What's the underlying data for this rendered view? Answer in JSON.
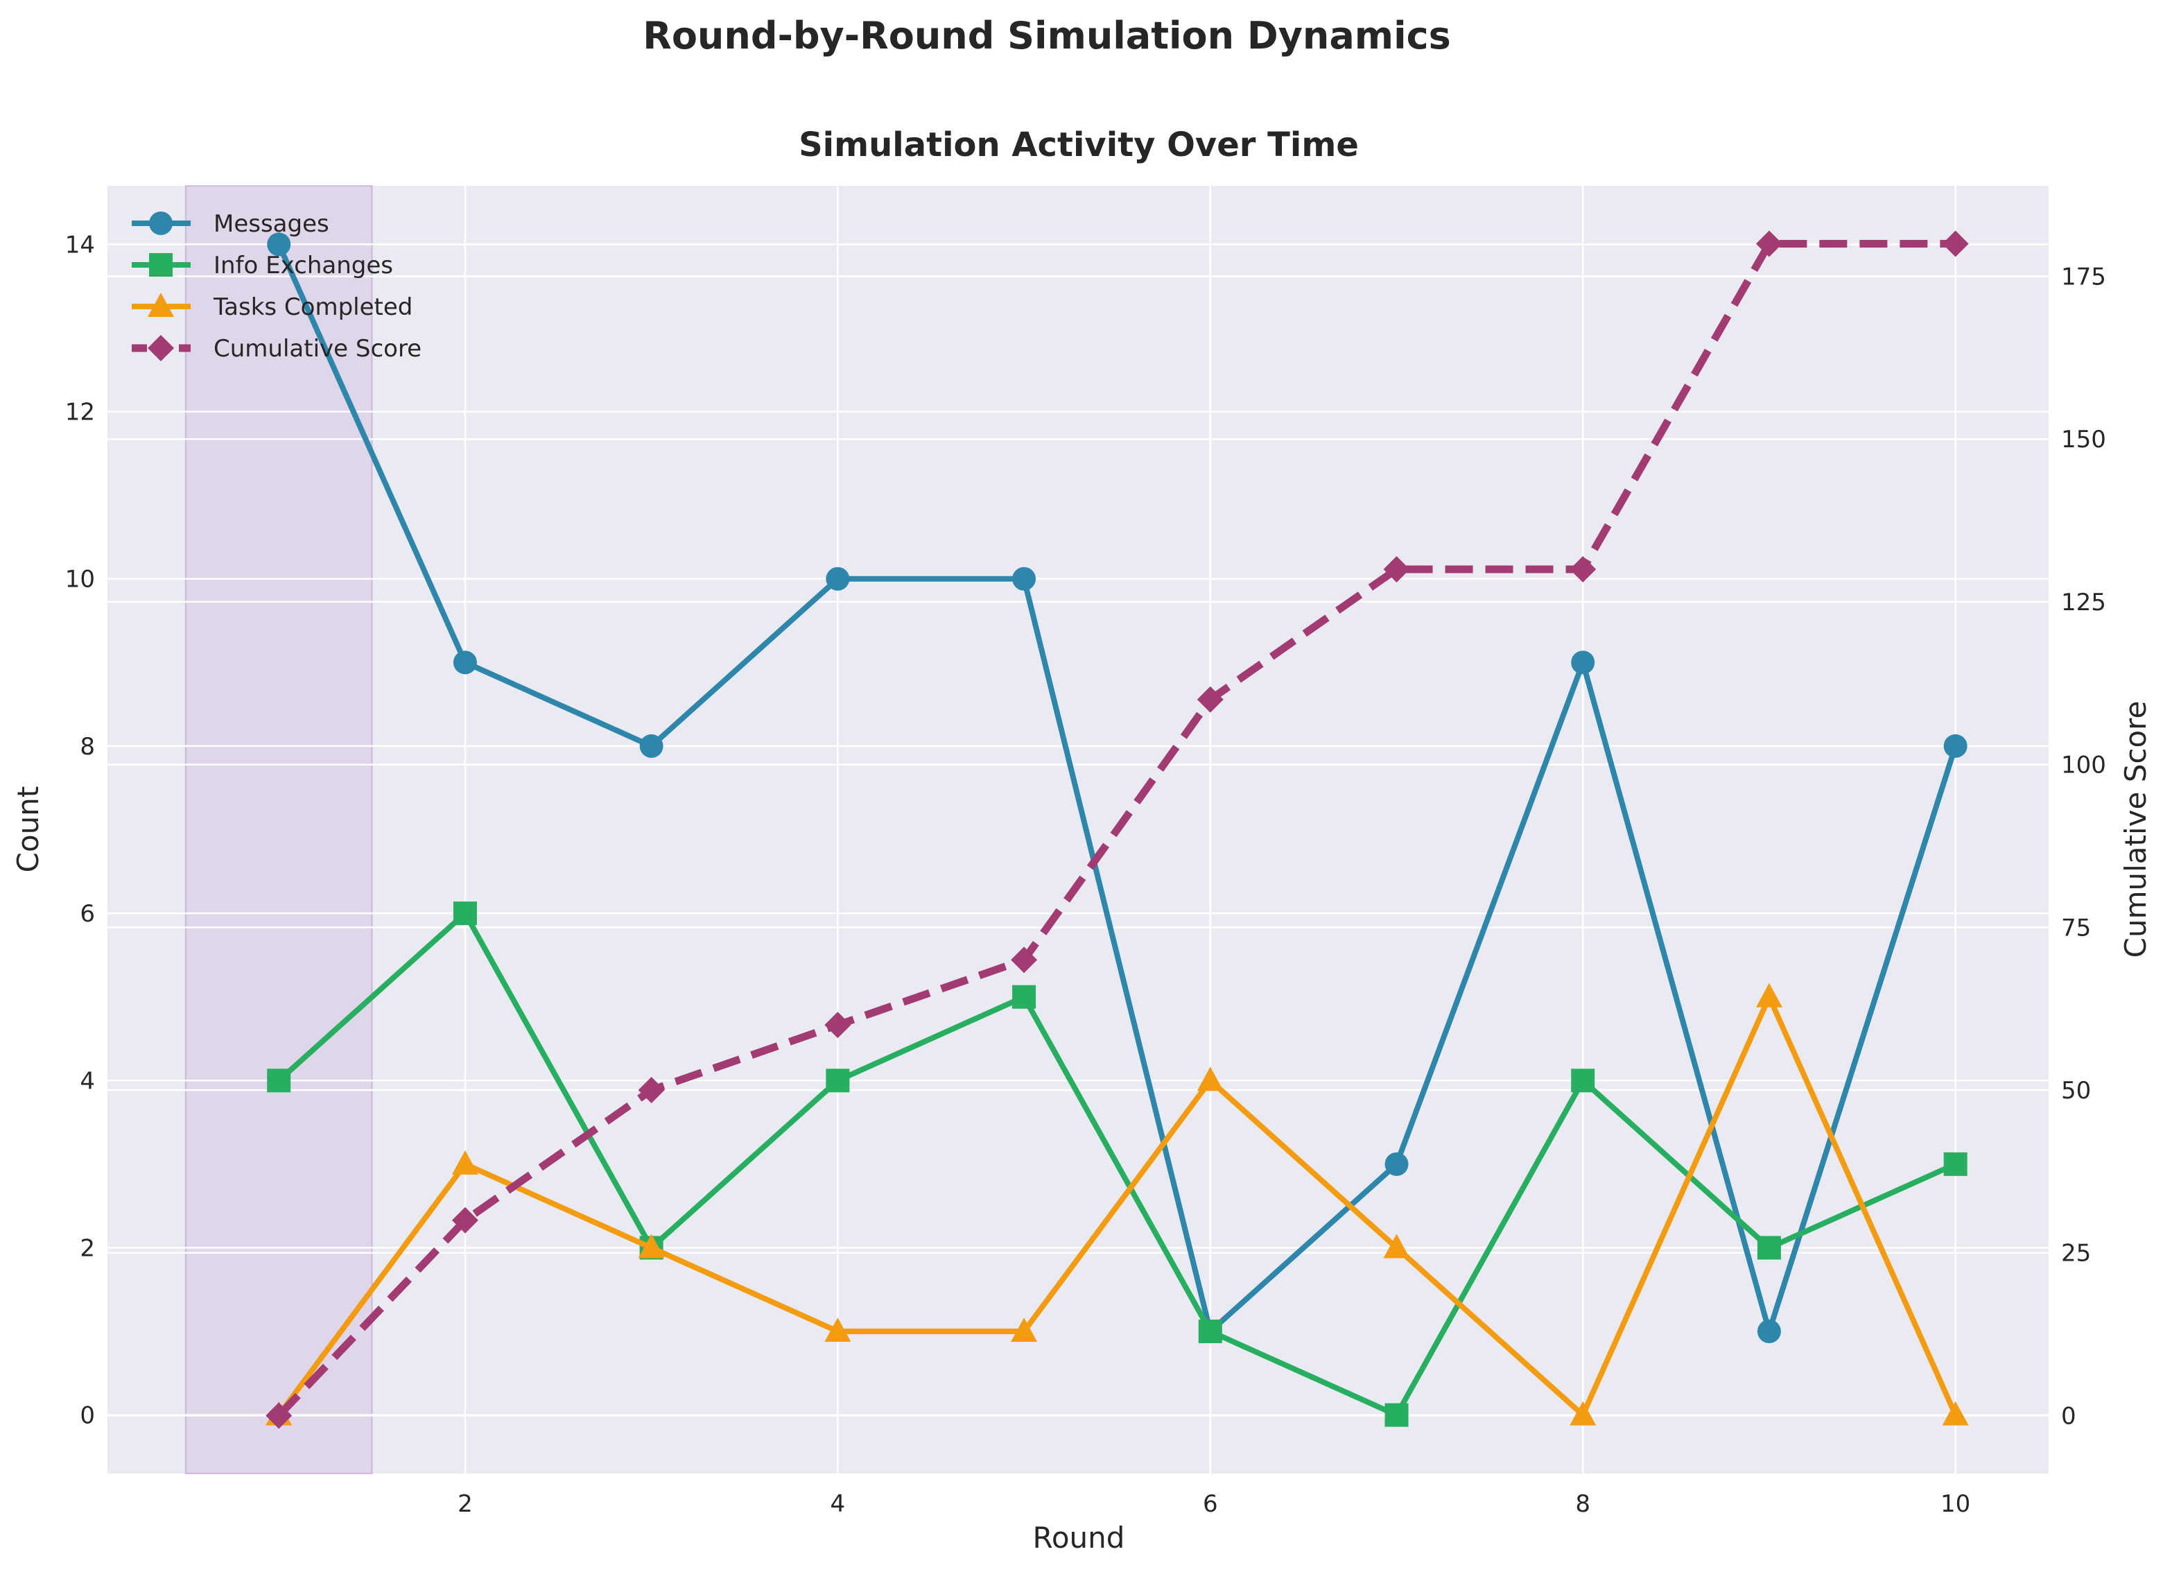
{
  "figure": {
    "suptitle": "Round-by-Round Simulation Dynamics"
  },
  "chart_data": {
    "type": "line",
    "title": "Simulation Activity Over Time",
    "xlabel": "Round",
    "ylabel": "Count",
    "ylabel_right": "Cumulative Score",
    "x": [
      1,
      2,
      3,
      4,
      5,
      6,
      7,
      8,
      9,
      10
    ],
    "xlim": [
      0.08,
      10.5
    ],
    "ylim": [
      -0.7,
      14.7
    ],
    "ylim_right": [
      -8.9,
      188.9
    ],
    "xticks": [
      2,
      4,
      6,
      8,
      10
    ],
    "yticks": [
      0,
      2,
      4,
      6,
      8,
      10,
      12,
      14
    ],
    "yticks_right": [
      0,
      25,
      50,
      75,
      100,
      125,
      150,
      175
    ],
    "grid": true,
    "legend_position": "top-left",
    "highlight_span": {
      "x_start": 0.5,
      "x_end": 1.5,
      "color": "#c9a9d6"
    },
    "series": [
      {
        "name": "Messages",
        "axis": "left",
        "color": "#2e86ab",
        "marker": "circle",
        "dashed": false,
        "values": [
          14,
          9,
          8,
          10,
          10,
          1,
          3,
          9,
          1,
          8
        ]
      },
      {
        "name": "Info Exchanges",
        "axis": "left",
        "color": "#27ae60",
        "marker": "square",
        "dashed": false,
        "values": [
          4,
          6,
          2,
          4,
          5,
          1,
          0,
          4,
          2,
          3
        ]
      },
      {
        "name": "Tasks Completed",
        "axis": "left",
        "color": "#f39c12",
        "marker": "triangle",
        "dashed": false,
        "values": [
          0,
          3,
          2,
          1,
          1,
          4,
          2,
          0,
          5,
          0
        ]
      },
      {
        "name": "Cumulative Score",
        "axis": "right",
        "color": "#a23b72",
        "marker": "diamond",
        "dashed": true,
        "values": [
          0,
          30,
          50,
          60,
          70,
          110,
          130,
          130,
          180,
          180
        ]
      }
    ]
  }
}
